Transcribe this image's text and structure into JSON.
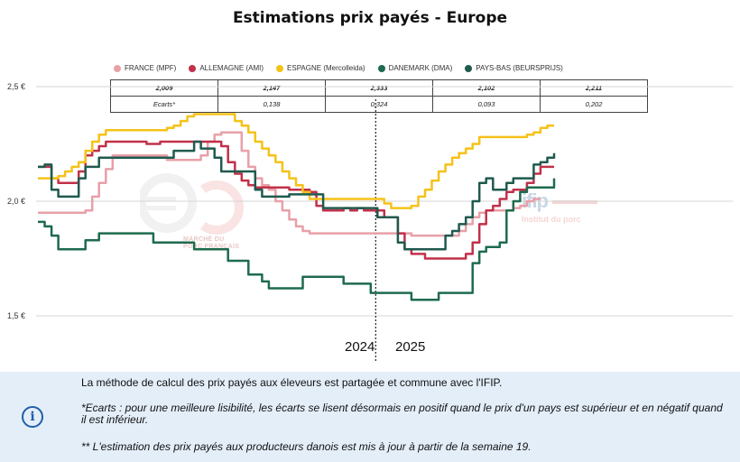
{
  "title": "Estimations prix payés - Europe",
  "legend": [
    {
      "label": "FRANCE (MPF)",
      "color": "#e8a0a8"
    },
    {
      "label": "ALLEMAGNE (AMI)",
      "color": "#c1314a"
    },
    {
      "label": "ESPAGNE (Mercolleida)",
      "color": "#f5c218"
    },
    {
      "label": "DANEMARK (DMA)",
      "color": "#1e6b4e"
    },
    {
      "label": "PAYS-BAS (BEURSPRIJS)",
      "color": "#1f5a4e"
    }
  ],
  "table": {
    "row1": [
      "2,009",
      "2,147",
      "2,333",
      "2,102",
      "2,211"
    ],
    "row2": [
      "Ecarts*",
      "0,138",
      "0,324",
      "0,093",
      "0,202"
    ]
  },
  "years": {
    "left": "2024",
    "right": "2025"
  },
  "watermark": {
    "left_line1": "MARCHÉ DU",
    "left_line2": "PORC FRANÇAIS",
    "ifip_name": "ifip",
    "ifip_sub": "Institut du porc"
  },
  "info": {
    "icon": "info-icon",
    "line1": "La méthode de calcul des prix payés aux éleveurs est partagée et commune avec l'IFIP.",
    "line2": "*Ecarts : pour une meilleure lisibilité, les écarts se lisent désormais en positif quand le prix d'un pays est supérieur et en négatif quand il est inférieur.",
    "line3": "** L'estimation des prix payés aux producteurs danois est mis à jour à partir de la semaine 19."
  },
  "chart_data": {
    "type": "line",
    "title": "Estimations prix payés - Europe",
    "ylabel": "",
    "ylim": [
      1.3,
      2.65
    ],
    "yticks": [
      "1,5 €",
      "2,0 €",
      "2,5 €"
    ],
    "ytick_values": [
      1.5,
      2.0,
      2.5
    ],
    "x_period_labels": [
      "2024",
      "2025"
    ],
    "year_break_index": 50,
    "grid": true,
    "legend_position": "top",
    "series": [
      {
        "name": "FRANCE (MPF)",
        "color": "#e8a0a8",
        "values": [
          1.95,
          1.95,
          1.95,
          1.95,
          1.95,
          1.95,
          1.95,
          1.96,
          2.02,
          2.08,
          2.14,
          2.2,
          2.2,
          2.2,
          2.2,
          2.2,
          2.2,
          2.2,
          2.2,
          2.18,
          2.18,
          2.18,
          2.18,
          2.18,
          2.2,
          2.26,
          2.29,
          2.3,
          2.3,
          2.3,
          2.22,
          2.15,
          2.1,
          2.07,
          2.05,
          2.0,
          1.96,
          1.92,
          1.89,
          1.87,
          1.86,
          1.86,
          1.86,
          1.86,
          1.86,
          1.86,
          1.86,
          1.86,
          1.86,
          1.86,
          1.86,
          1.86,
          1.86,
          1.86,
          1.86,
          1.85,
          1.85,
          1.85,
          1.85,
          1.85,
          1.85,
          1.85,
          1.87,
          1.9,
          1.93,
          1.95,
          1.96,
          1.96,
          1.96,
          1.96,
          1.97,
          1.98,
          2.0,
          2.01,
          2.01
        ]
      },
      {
        "name": "ALLEMAGNE (AMI)",
        "color": "#c1314a",
        "values": [
          2.15,
          2.15,
          2.1,
          2.08,
          2.08,
          2.08,
          2.13,
          2.2,
          2.22,
          2.24,
          2.26,
          2.26,
          2.26,
          2.26,
          2.26,
          2.26,
          2.25,
          2.25,
          2.26,
          2.26,
          2.26,
          2.26,
          2.26,
          2.26,
          2.26,
          2.26,
          2.26,
          2.24,
          2.17,
          2.12,
          2.09,
          2.07,
          2.06,
          2.06,
          2.06,
          2.06,
          2.06,
          2.05,
          2.05,
          2.05,
          2.04,
          1.98,
          1.96,
          1.96,
          1.96,
          1.97,
          1.96,
          1.97,
          1.96,
          1.96,
          1.96,
          1.93,
          1.93,
          1.86,
          1.79,
          1.77,
          1.77,
          1.75,
          1.75,
          1.75,
          1.75,
          1.75,
          1.75,
          1.77,
          1.82,
          1.9,
          1.96,
          1.98,
          2.01,
          2.04,
          2.05,
          2.05,
          2.08,
          2.12,
          2.15,
          2.15,
          2.15
        ]
      },
      {
        "name": "ESPAGNE (Mercolleida)",
        "color": "#f5c218",
        "values": [
          2.1,
          2.1,
          2.1,
          2.11,
          2.13,
          2.15,
          2.17,
          2.22,
          2.26,
          2.29,
          2.31,
          2.31,
          2.31,
          2.31,
          2.31,
          2.31,
          2.31,
          2.31,
          2.31,
          2.32,
          2.33,
          2.35,
          2.37,
          2.38,
          2.38,
          2.38,
          2.38,
          2.38,
          2.38,
          2.35,
          2.33,
          2.3,
          2.26,
          2.23,
          2.2,
          2.17,
          2.13,
          2.1,
          2.07,
          2.04,
          2.01,
          2.01,
          2.01,
          2.01,
          2.01,
          2.01,
          2.01,
          2.01,
          2.01,
          2.01,
          2.01,
          1.99,
          1.97,
          1.97,
          1.97,
          1.98,
          2.02,
          2.05,
          2.09,
          2.13,
          2.16,
          2.19,
          2.21,
          2.23,
          2.25,
          2.28,
          2.28,
          2.28,
          2.28,
          2.28,
          2.28,
          2.28,
          2.29,
          2.3,
          2.32,
          2.33,
          2.33
        ]
      },
      {
        "name": "DANEMARK (DMA)",
        "color": "#1e6b4e",
        "values": [
          1.91,
          1.89,
          1.85,
          1.79,
          1.79,
          1.79,
          1.79,
          1.83,
          1.83,
          1.86,
          1.86,
          1.86,
          1.86,
          1.86,
          1.86,
          1.86,
          1.86,
          1.82,
          1.82,
          1.82,
          1.82,
          1.82,
          1.82,
          1.79,
          1.79,
          1.79,
          1.79,
          1.79,
          1.74,
          1.74,
          1.74,
          1.68,
          1.68,
          1.65,
          1.62,
          1.62,
          1.62,
          1.62,
          1.62,
          1.67,
          1.67,
          1.67,
          1.67,
          1.67,
          1.67,
          1.64,
          1.64,
          1.64,
          1.64,
          1.6,
          1.6,
          1.6,
          1.6,
          1.6,
          1.6,
          1.57,
          1.57,
          1.57,
          1.57,
          1.6,
          1.6,
          1.6,
          1.6,
          1.6,
          1.73,
          1.78,
          1.8,
          1.8,
          1.82,
          1.96,
          2.0,
          2.04,
          2.06,
          2.06,
          2.06,
          2.06,
          2.1
        ]
      },
      {
        "name": "PAYS-BAS (BEURSPRIJS)",
        "color": "#1f5a4e",
        "values": [
          2.15,
          2.16,
          2.05,
          2.02,
          2.02,
          2.02,
          2.1,
          2.15,
          2.15,
          2.19,
          2.19,
          2.19,
          2.19,
          2.19,
          2.19,
          2.19,
          2.19,
          2.19,
          2.19,
          2.19,
          2.22,
          2.22,
          2.22,
          2.26,
          2.23,
          2.23,
          2.19,
          2.13,
          2.13,
          2.13,
          2.13,
          2.13,
          2.05,
          2.02,
          2.02,
          2.02,
          2.02,
          2.03,
          2.03,
          2.03,
          2.03,
          2.03,
          1.97,
          1.97,
          1.97,
          1.97,
          1.97,
          1.97,
          1.97,
          1.97,
          1.93,
          1.93,
          1.93,
          1.82,
          1.79,
          1.79,
          1.79,
          1.79,
          1.79,
          1.79,
          1.85,
          1.87,
          1.9,
          1.93,
          2.0,
          2.08,
          2.1,
          2.05,
          2.05,
          2.08,
          2.1,
          2.1,
          2.1,
          2.16,
          2.17,
          2.19,
          2.21
        ]
      }
    ]
  }
}
